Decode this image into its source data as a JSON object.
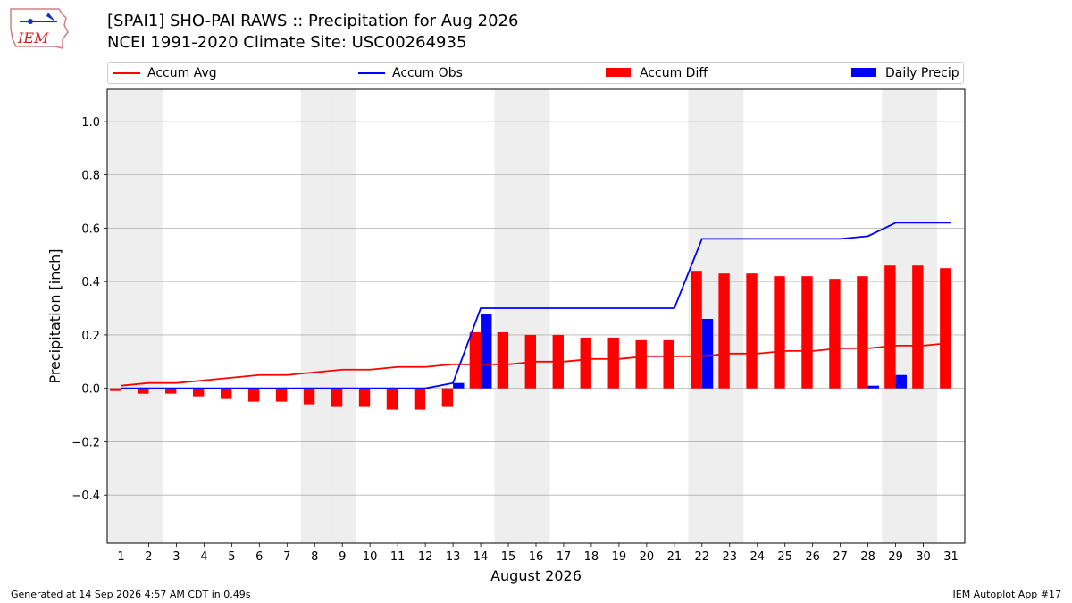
{
  "header": {
    "title_line1": "[SPAI1] SHO-PAI RAWS :: Precipitation for Aug 2026",
    "title_line2": "NCEI 1991-2020 Climate Site: USC00264935",
    "logo_text": "IEM"
  },
  "footer": {
    "left": "Generated at 14 Sep 2026 4:57 AM CDT in 0.49s",
    "right": "IEM Autoplot App #17"
  },
  "colors": {
    "avg": "#ff0000",
    "obs": "#0000ff",
    "diff": "#ff0000",
    "daily": "#0000ff",
    "weekend_shade": "#eeeeee",
    "grid": "#b0b0b0"
  },
  "chart_data": {
    "type": "bar",
    "xlabel": "August 2026",
    "ylabel": "Precipitation [inch]",
    "xlim": [
      0.5,
      31.5
    ],
    "ylim": [
      -0.58,
      1.12
    ],
    "yticks": [
      -0.4,
      -0.2,
      0.0,
      0.2,
      0.4,
      0.6,
      0.8,
      1.0
    ],
    "ytick_labels": [
      "−0.4",
      "−0.2",
      "0.0",
      "0.2",
      "0.4",
      "0.6",
      "0.8",
      "1.0"
    ],
    "grid": true,
    "legend_position": "top",
    "days": [
      1,
      2,
      3,
      4,
      5,
      6,
      7,
      8,
      9,
      10,
      11,
      12,
      13,
      14,
      15,
      16,
      17,
      18,
      19,
      20,
      21,
      22,
      23,
      24,
      25,
      26,
      27,
      28,
      29,
      30,
      31
    ],
    "weekend_days": [
      1,
      2,
      8,
      9,
      15,
      16,
      22,
      23,
      29,
      30
    ],
    "series": [
      {
        "name": "Accum Avg",
        "kind": "line",
        "values": [
          0.01,
          0.02,
          0.02,
          0.03,
          0.04,
          0.05,
          0.05,
          0.06,
          0.07,
          0.07,
          0.08,
          0.08,
          0.09,
          0.09,
          0.09,
          0.1,
          0.1,
          0.11,
          0.11,
          0.12,
          0.12,
          0.12,
          0.13,
          0.13,
          0.14,
          0.14,
          0.15,
          0.15,
          0.16,
          0.16,
          0.17
        ]
      },
      {
        "name": "Accum Obs",
        "kind": "line",
        "values": [
          0.0,
          0.0,
          0.0,
          0.0,
          0.0,
          0.0,
          0.0,
          0.0,
          0.0,
          0.0,
          0.0,
          0.0,
          0.02,
          0.3,
          0.3,
          0.3,
          0.3,
          0.3,
          0.3,
          0.3,
          0.3,
          0.56,
          0.56,
          0.56,
          0.56,
          0.56,
          0.56,
          0.57,
          0.62,
          0.62,
          0.62
        ]
      },
      {
        "name": "Accum Diff",
        "kind": "bar",
        "values": [
          -0.01,
          -0.02,
          -0.02,
          -0.03,
          -0.04,
          -0.05,
          -0.05,
          -0.06,
          -0.07,
          -0.07,
          -0.08,
          -0.08,
          -0.07,
          0.21,
          0.21,
          0.2,
          0.2,
          0.19,
          0.19,
          0.18,
          0.18,
          0.44,
          0.43,
          0.43,
          0.42,
          0.42,
          0.41,
          0.42,
          0.46,
          0.46,
          0.45
        ]
      },
      {
        "name": "Daily Precip",
        "kind": "bar",
        "values": [
          0,
          0,
          0,
          0,
          0,
          0,
          0,
          0,
          0,
          0,
          0,
          0,
          0.02,
          0.28,
          0,
          0,
          0,
          0,
          0,
          0,
          0,
          0.26,
          0,
          0,
          0,
          0,
          0,
          0.01,
          0.05,
          0,
          0
        ]
      }
    ]
  }
}
